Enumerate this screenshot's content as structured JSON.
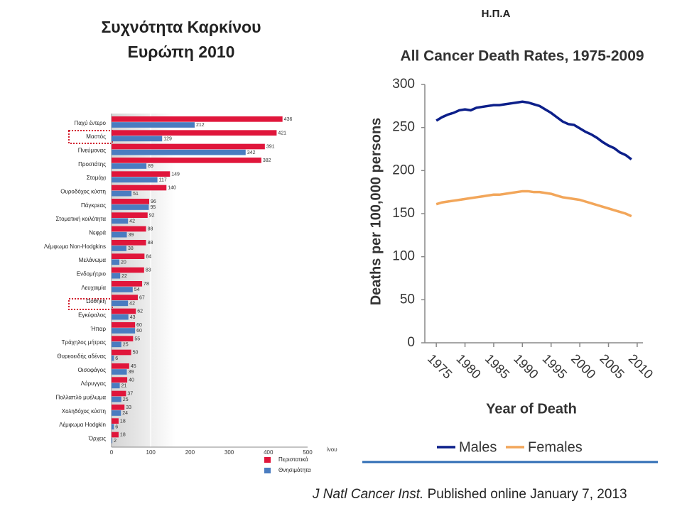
{
  "header": "Η.Π.Α",
  "source": {
    "journal": "J Natl Cancer Inst.",
    "text": "Published online January 7, 2013"
  },
  "chart_data": [
    {
      "type": "bar",
      "orientation": "horizontal",
      "title": [
        "Συχνότητα Καρκίνου",
        "Ευρώπη 2010"
      ],
      "x_label": "ίνου",
      "categories": [
        "Παχύ έντερο",
        "Μαστός",
        "Πνεύμονας",
        "Προστάτης",
        "Στομάχι",
        "Ουροδόχος κύστη",
        "Πάγκρεας",
        "Στοματική κοιλότητα",
        "Νεφρά",
        "Λέμφωμα Non-Hodgkins",
        "Μελάνωμα",
        "Ενδομήτριο",
        "Λευχαιμία",
        "Ωοθήκη",
        "Εγκέφαλος",
        "Ήπαρ",
        "Τράχηλος μήτρας",
        "Θυρεοειδής αδένας",
        "Οισοφάγος",
        "Λάρυγγας",
        "Πολλαπλό μυέλωμα",
        "Χοληδόχος κύστη",
        "Λέμφωμα Hodgkin",
        "Όρχεις"
      ],
      "series": [
        {
          "name": "Περιστατικά",
          "color": "#e0163b",
          "values": [
            436,
            421,
            391,
            382,
            149,
            140,
            96,
            92,
            88,
            88,
            84,
            83,
            78,
            67,
            62,
            60,
            55,
            50,
            45,
            40,
            37,
            33,
            18,
            18
          ]
        },
        {
          "name": "Θνησιμότητα",
          "color": "#4a7cc0",
          "values": [
            212,
            129,
            342,
            89,
            117,
            51,
            95,
            42,
            39,
            38,
            20,
            22,
            54,
            42,
            43,
            60,
            25,
            6,
            39,
            21,
            25,
            24,
            6,
            2
          ]
        }
      ],
      "xlim": [
        0,
        500
      ],
      "xticks": [
        0,
        100,
        200,
        300,
        400,
        500
      ],
      "value_labels": true,
      "legend_position": "bottom-right"
    },
    {
      "type": "line",
      "title": "All Cancer Death Rates, 1975-2009",
      "x_label": "Year of Death",
      "y_label": "Deaths per 100,000 persons",
      "x": [
        1975,
        1976,
        1977,
        1978,
        1979,
        1980,
        1981,
        1982,
        1983,
        1984,
        1985,
        1986,
        1987,
        1988,
        1989,
        1990,
        1991,
        1992,
        1993,
        1994,
        1995,
        1996,
        1997,
        1998,
        1999,
        2000,
        2001,
        2002,
        2003,
        2004,
        2005,
        2006,
        2007,
        2008,
        2009
      ],
      "series": [
        {
          "name": "Males",
          "color": "#0c1f8a",
          "values": [
            258,
            262,
            265,
            267,
            270,
            271,
            270,
            273,
            274,
            275,
            276,
            276,
            277,
            278,
            279,
            280,
            279,
            277,
            275,
            271,
            267,
            262,
            257,
            254,
            253,
            249,
            245,
            242,
            238,
            233,
            229,
            226,
            221,
            218,
            213
          ]
        },
        {
          "name": "Females",
          "color": "#f2a65a",
          "values": [
            161,
            163,
            164,
            165,
            166,
            167,
            168,
            169,
            170,
            171,
            172,
            172,
            173,
            174,
            175,
            176,
            176,
            175,
            175,
            174,
            173,
            171,
            169,
            168,
            167,
            166,
            164,
            162,
            160,
            158,
            156,
            154,
            152,
            150,
            147
          ]
        }
      ],
      "xlim": [
        1973,
        2011
      ],
      "xticks": [
        1975,
        1980,
        1985,
        1990,
        1995,
        2000,
        2005,
        2010
      ],
      "ylim": [
        0,
        300
      ],
      "yticks": [
        0,
        50,
        100,
        150,
        200,
        250,
        300
      ],
      "legend_position": "bottom"
    }
  ]
}
